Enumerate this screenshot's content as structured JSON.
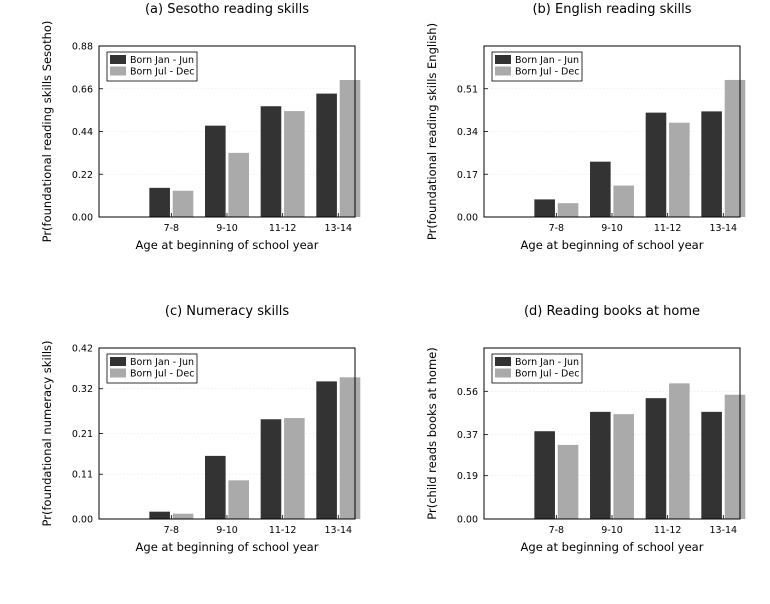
{
  "chart_data": [
    {
      "type": "bar",
      "title": "(a) Sesotho reading skills",
      "xlabel": "Age at beginning of school year",
      "ylabel": "Pr(foundational reading skills Sesotho)",
      "categories": [
        "7-8",
        "9-10",
        "11-12",
        "13-14"
      ],
      "yticks": [
        "0.00",
        "0.22",
        "0.44",
        "0.66",
        "0.88"
      ],
      "ylim": [
        0,
        0.88
      ],
      "legend_position": "top-left",
      "series": [
        {
          "name": "Born Jan - Jun",
          "values": [
            0.15,
            0.47,
            0.57,
            0.635
          ],
          "color": "#333333"
        },
        {
          "name": "Born Jul - Dec",
          "values": [
            0.135,
            0.33,
            0.545,
            0.705
          ],
          "color": "#aaaaaa"
        }
      ]
    },
    {
      "type": "bar",
      "title": "(b) English reading skills",
      "xlabel": "Age at beginning of school year",
      "ylabel": "Pr(foundational reading skills English)",
      "categories": [
        "7-8",
        "9-10",
        "11-12",
        "13-14"
      ],
      "yticks": [
        "0.00",
        "0.17",
        "0.34",
        "0.51"
      ],
      "ylim": [
        0,
        0.68
      ],
      "legend_position": "top-left",
      "series": [
        {
          "name": "Born Jan - Jun",
          "values": [
            0.07,
            0.22,
            0.415,
            0.42
          ],
          "color": "#333333"
        },
        {
          "name": "Born Jul - Dec",
          "values": [
            0.055,
            0.125,
            0.375,
            0.545
          ],
          "color": "#aaaaaa"
        }
      ]
    },
    {
      "type": "bar",
      "title": "(c) Numeracy skills",
      "xlabel": "Age at beginning of school year",
      "ylabel": "Pr(foundational numeracy skills)",
      "categories": [
        "7-8",
        "9-10",
        "11-12",
        "13-14"
      ],
      "yticks": [
        "0.00",
        "0.11",
        "0.21",
        "0.32",
        "0.42"
      ],
      "ylim": [
        0,
        0.42
      ],
      "legend_position": "top-left",
      "series": [
        {
          "name": "Born Jan - Jun",
          "values": [
            0.018,
            0.155,
            0.245,
            0.338
          ],
          "color": "#333333"
        },
        {
          "name": "Born Jul - Dec",
          "values": [
            0.013,
            0.095,
            0.248,
            0.348
          ],
          "color": "#aaaaaa"
        }
      ]
    },
    {
      "type": "bar",
      "title": "(d) Reading books at home",
      "xlabel": "Age at beginning of school year",
      "ylabel": "Pr(child reads books at home)",
      "categories": [
        "7-8",
        "9-10",
        "11-12",
        "13-14"
      ],
      "yticks": [
        "0.00",
        "0.19",
        "0.37",
        "0.56"
      ],
      "ylim": [
        0,
        0.75
      ],
      "legend_position": "top-left",
      "series": [
        {
          "name": "Born Jan - Jun",
          "values": [
            0.385,
            0.47,
            0.53,
            0.47
          ],
          "color": "#333333"
        },
        {
          "name": "Born Jul - Dec",
          "values": [
            0.325,
            0.46,
            0.595,
            0.545
          ],
          "color": "#aaaaaa"
        }
      ]
    }
  ]
}
